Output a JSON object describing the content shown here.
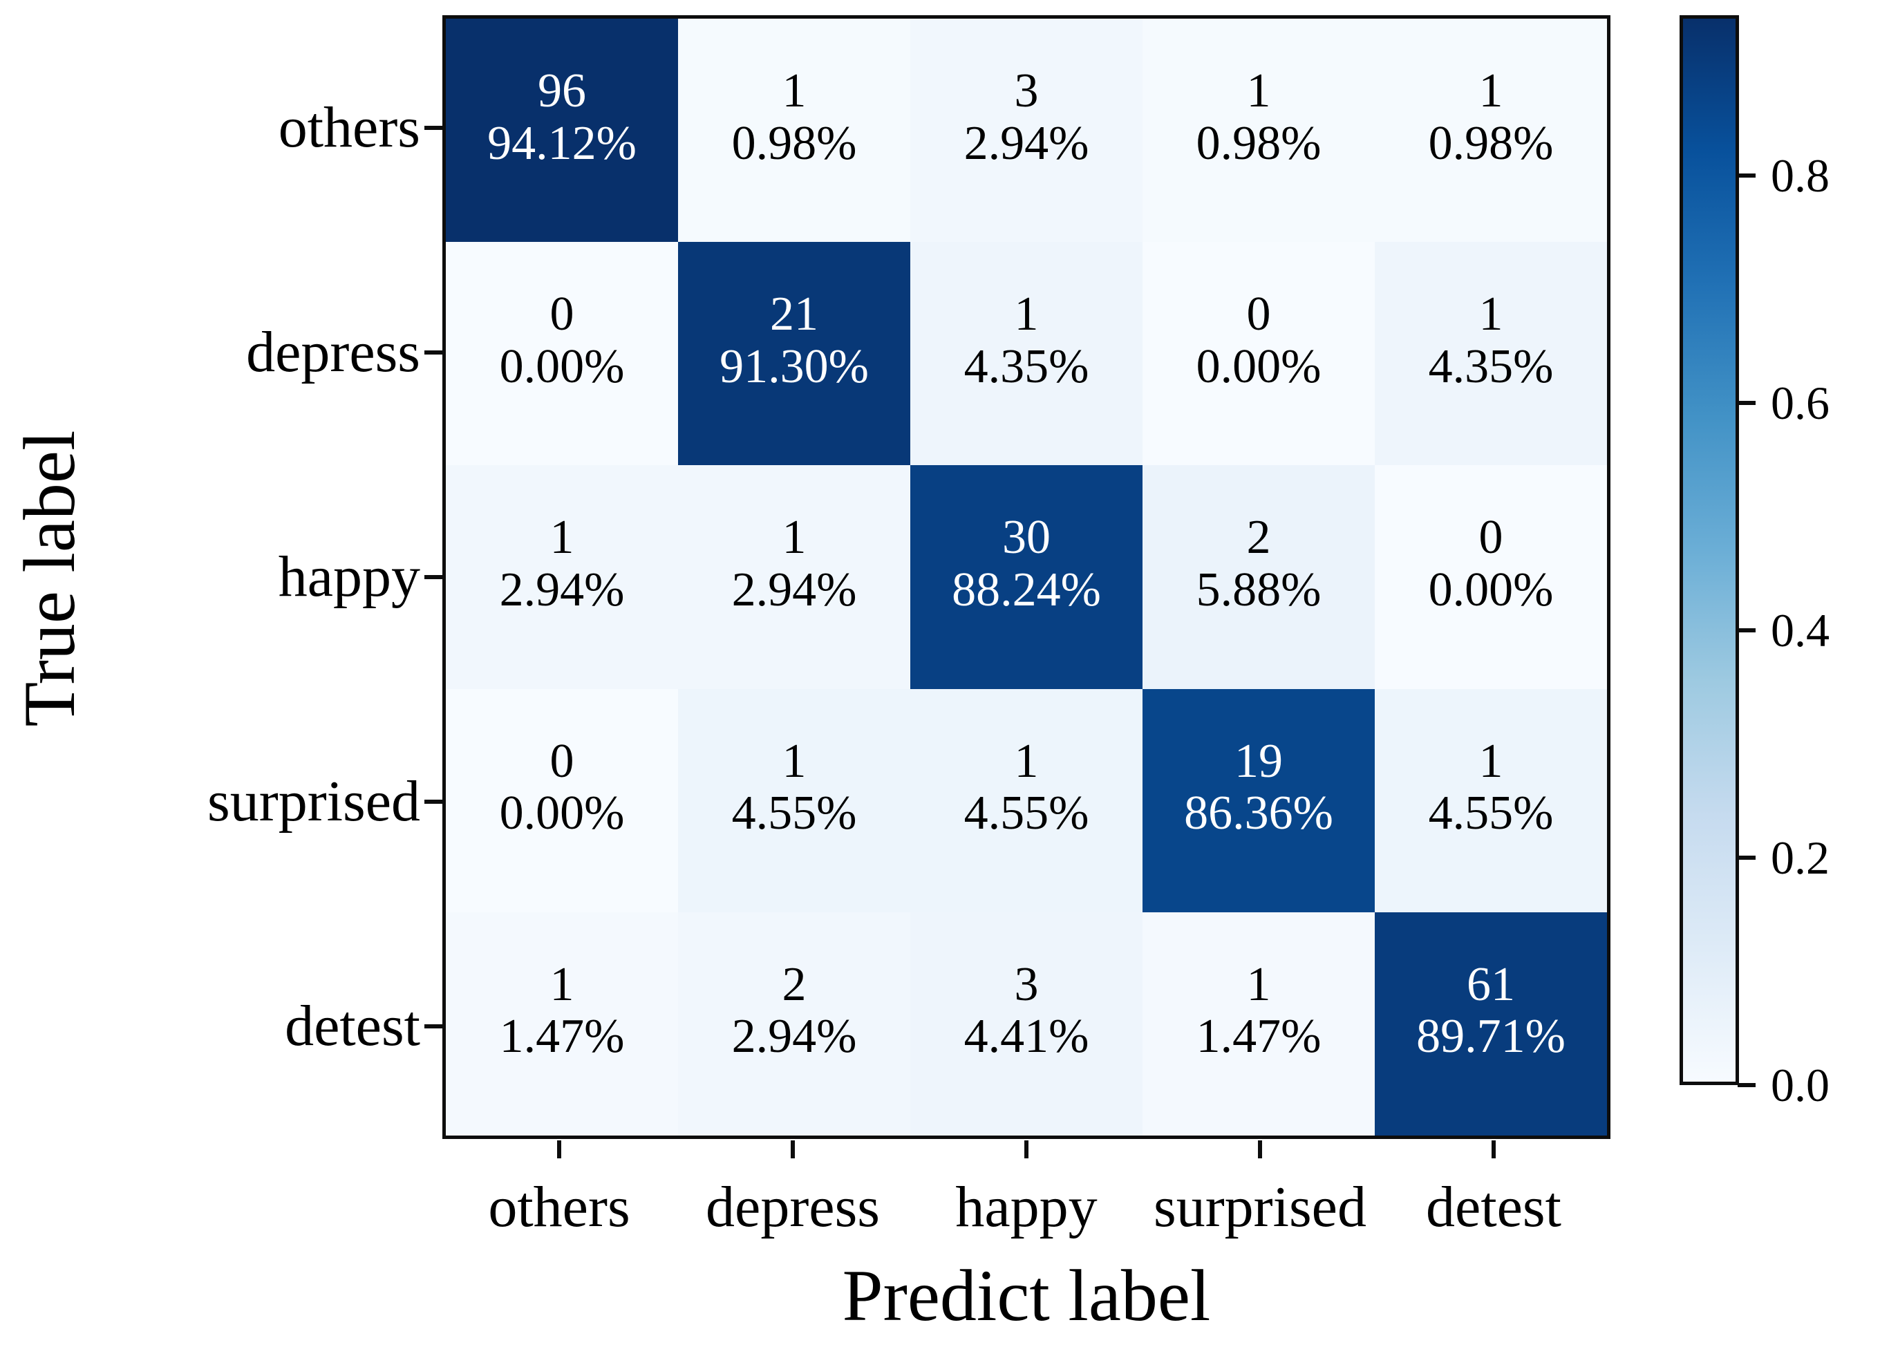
{
  "chart_data": {
    "type": "heatmap",
    "title": "",
    "xlabel": "Predict label",
    "ylabel": "True label",
    "categories": [
      "others",
      "depress",
      "happy",
      "surprised",
      "detest"
    ],
    "rows": [
      {
        "label": "others",
        "cells": [
          {
            "count": "96",
            "pct": "94.12%",
            "v": 0.9412
          },
          {
            "count": "1",
            "pct": "0.98%",
            "v": 0.0098
          },
          {
            "count": "3",
            "pct": "2.94%",
            "v": 0.0294
          },
          {
            "count": "1",
            "pct": "0.98%",
            "v": 0.0098
          },
          {
            "count": "1",
            "pct": "0.98%",
            "v": 0.0098
          }
        ]
      },
      {
        "label": "depress",
        "cells": [
          {
            "count": "0",
            "pct": "0.00%",
            "v": 0.0
          },
          {
            "count": "21",
            "pct": "91.30%",
            "v": 0.913
          },
          {
            "count": "1",
            "pct": "4.35%",
            "v": 0.0435
          },
          {
            "count": "0",
            "pct": "0.00%",
            "v": 0.0
          },
          {
            "count": "1",
            "pct": "4.35%",
            "v": 0.0435
          }
        ]
      },
      {
        "label": "happy",
        "cells": [
          {
            "count": "1",
            "pct": "2.94%",
            "v": 0.0294
          },
          {
            "count": "1",
            "pct": "2.94%",
            "v": 0.0294
          },
          {
            "count": "30",
            "pct": "88.24%",
            "v": 0.8824
          },
          {
            "count": "2",
            "pct": "5.88%",
            "v": 0.0588
          },
          {
            "count": "0",
            "pct": "0.00%",
            "v": 0.0
          }
        ]
      },
      {
        "label": "surprised",
        "cells": [
          {
            "count": "0",
            "pct": "0.00%",
            "v": 0.0
          },
          {
            "count": "1",
            "pct": "4.55%",
            "v": 0.0455
          },
          {
            "count": "1",
            "pct": "4.55%",
            "v": 0.0455
          },
          {
            "count": "19",
            "pct": "86.36%",
            "v": 0.8636
          },
          {
            "count": "1",
            "pct": "4.55%",
            "v": 0.0455
          }
        ]
      },
      {
        "label": "detest",
        "cells": [
          {
            "count": "1",
            "pct": "1.47%",
            "v": 0.0147
          },
          {
            "count": "2",
            "pct": "2.94%",
            "v": 0.0294
          },
          {
            "count": "3",
            "pct": "4.41%",
            "v": 0.0441
          },
          {
            "count": "1",
            "pct": "1.47%",
            "v": 0.0147
          },
          {
            "count": "61",
            "pct": "89.71%",
            "v": 0.8971
          }
        ]
      }
    ],
    "vmin": 0.0,
    "vmax": 0.9412,
    "colormap": "Blues",
    "colormap_colors": [
      "#f7fbff",
      "#deebf7",
      "#c6dbef",
      "#9ecae1",
      "#6baed6",
      "#4292c6",
      "#2171b5",
      "#08519c",
      "#08306b"
    ],
    "annotation_text_colors": {
      "light_cells": "#000000",
      "dark_cells": "#ffffff"
    },
    "axis_color": "#0d0d0d",
    "legend_position": "right",
    "grid": false,
    "colorbar_ticks": [
      {
        "label": "0.8",
        "value": 0.8
      },
      {
        "label": "0.6",
        "value": 0.6
      },
      {
        "label": "0.4",
        "value": 0.4
      },
      {
        "label": "0.2",
        "value": 0.2
      },
      {
        "label": "0.0",
        "value": 0.0
      }
    ]
  }
}
